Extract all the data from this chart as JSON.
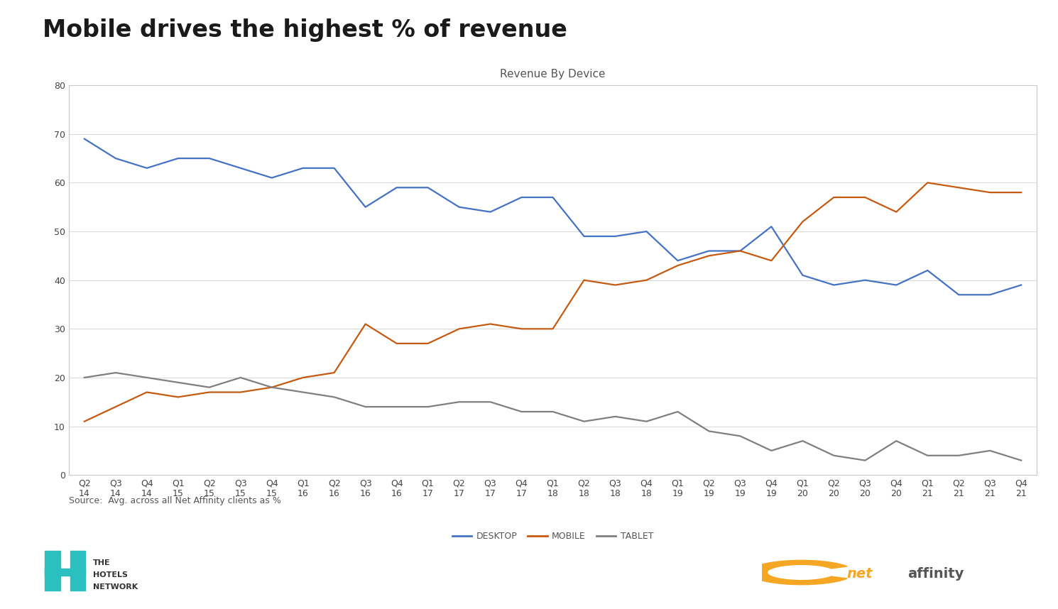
{
  "title": "Mobile drives the highest % of revenue",
  "chart_title": "Revenue By Device",
  "source_text": "Source:  Avg. across all Net Affinity clients as %",
  "x_labels": [
    "Q2\n14",
    "Q3\n14",
    "Q4\n14",
    "Q1\n15",
    "Q2\n15",
    "Q3\n15",
    "Q4\n15",
    "Q1\n16",
    "Q2\n16",
    "Q3\n16",
    "Q4\n16",
    "Q1\n17",
    "Q2\n17",
    "Q3\n17",
    "Q4\n17",
    "Q1\n18",
    "Q2\n18",
    "Q3\n18",
    "Q4\n18",
    "Q1\n19",
    "Q2\n19",
    "Q3\n19",
    "Q4\n19",
    "Q1\n20",
    "Q2\n20",
    "Q3\n20",
    "Q4\n20",
    "Q1\n21",
    "Q2\n21",
    "Q3\n21",
    "Q4\n21"
  ],
  "desktop": [
    69,
    65,
    63,
    65,
    65,
    63,
    61,
    63,
    63,
    55,
    59,
    59,
    55,
    54,
    57,
    57,
    49,
    49,
    50,
    44,
    46,
    46,
    51,
    41,
    39,
    40,
    39,
    42,
    37,
    37,
    39
  ],
  "mobile": [
    11,
    14,
    17,
    16,
    17,
    17,
    18,
    20,
    21,
    31,
    27,
    27,
    30,
    31,
    30,
    30,
    40,
    39,
    40,
    43,
    45,
    46,
    44,
    52,
    57,
    57,
    54,
    60,
    59,
    58,
    58
  ],
  "tablet": [
    20,
    21,
    20,
    19,
    18,
    20,
    18,
    17,
    16,
    14,
    14,
    14,
    15,
    15,
    13,
    13,
    11,
    12,
    11,
    13,
    9,
    8,
    5,
    7,
    4,
    3,
    7,
    4,
    4,
    5,
    3
  ],
  "desktop_color": "#4472C4",
  "mobile_color": "#C55A11",
  "tablet_color": "#7F7F7F",
  "ylim": [
    0,
    80
  ],
  "yticks": [
    0,
    10,
    20,
    30,
    40,
    50,
    60,
    70,
    80
  ],
  "legend_labels": [
    "DESKTOP",
    "MOBILE",
    "TABLET"
  ],
  "bg_color": "#FFFFFF",
  "chart_area_color": "#FFFFFF",
  "chart_border_color": "#C8C8C8",
  "grid_color": "#D8D8D8",
  "title_fontsize": 24,
  "chart_title_fontsize": 11,
  "tick_fontsize": 9,
  "legend_fontsize": 9,
  "source_fontsize": 9
}
